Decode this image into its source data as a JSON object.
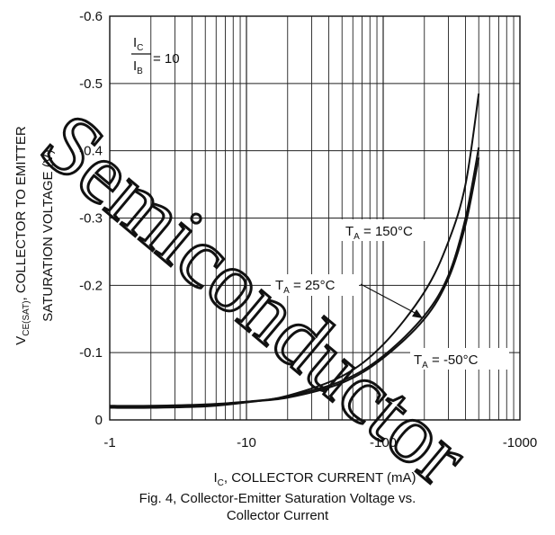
{
  "chart_data": {
    "type": "line",
    "x_scale": "log",
    "xlim": [
      -1,
      -1000
    ],
    "ylim": [
      0,
      -0.6
    ],
    "grid": true,
    "x_ticks": [
      {
        "value": -1,
        "label": "-1"
      },
      {
        "value": -10,
        "label": "-10"
      },
      {
        "value": -100,
        "label": "-100"
      },
      {
        "value": -1000,
        "label": "-1000"
      }
    ],
    "y_ticks": [
      {
        "value": 0,
        "label": "0"
      },
      {
        "value": -0.1,
        "label": "-0.1"
      },
      {
        "value": -0.2,
        "label": "-0.2"
      },
      {
        "value": -0.3,
        "label": "-0.3"
      },
      {
        "value": -0.4,
        "label": "-0.4"
      },
      {
        "value": -0.5,
        "label": "-0.5"
      },
      {
        "value": -0.6,
        "label": "-0.6"
      }
    ],
    "xlabel": {
      "main": "I",
      "sub": "C",
      "rest": ", COLLECTOR CURRENT (mA)"
    },
    "ylabel": {
      "main": "V",
      "sub": "CE(SAT)",
      "rest": ", COLLECTOR TO EMITTER",
      "line2": "SATURATION VOLTAGE (V)"
    },
    "condition": {
      "numerator_main": "I",
      "numerator_sub": "C",
      "denominator_main": "I",
      "denominator_sub": "B",
      "value": "= 10"
    },
    "series": [
      {
        "name": "T_A = 150°C",
        "label_main": "T",
        "label_sub": "A",
        "label_rest": " = 150°C",
        "x": [
          -1,
          -2,
          -5,
          -10,
          -20,
          -50,
          -100,
          -200,
          -300,
          -400,
          -500
        ],
        "y": [
          -0.018,
          -0.018,
          -0.02,
          -0.026,
          -0.036,
          -0.065,
          -0.112,
          -0.19,
          -0.265,
          -0.35,
          -0.485
        ]
      },
      {
        "name": "T_A = 25°C",
        "label_main": "T",
        "label_sub": "A",
        "label_rest": " = 25°C",
        "x": [
          -1,
          -2,
          -5,
          -10,
          -20,
          -50,
          -100,
          -200,
          -300,
          -400,
          -500
        ],
        "y": [
          -0.02,
          -0.02,
          -0.022,
          -0.027,
          -0.035,
          -0.058,
          -0.095,
          -0.155,
          -0.215,
          -0.3,
          -0.405
        ]
      },
      {
        "name": "T_A = -50°C",
        "label_main": "T",
        "label_sub": "A",
        "label_rest": " = -50°C",
        "x": [
          -1,
          -2,
          -5,
          -10,
          -20,
          -50,
          -100,
          -200,
          -300,
          -400,
          -500
        ],
        "y": [
          -0.021,
          -0.021,
          -0.023,
          -0.027,
          -0.033,
          -0.055,
          -0.092,
          -0.15,
          -0.21,
          -0.29,
          -0.39
        ]
      }
    ]
  },
  "caption": {
    "line1": "Fig. 4, Collector-Emitter Saturation Voltage vs.",
    "line2": "Collector Current"
  },
  "watermark": {
    "text": "Semiconductor"
  }
}
